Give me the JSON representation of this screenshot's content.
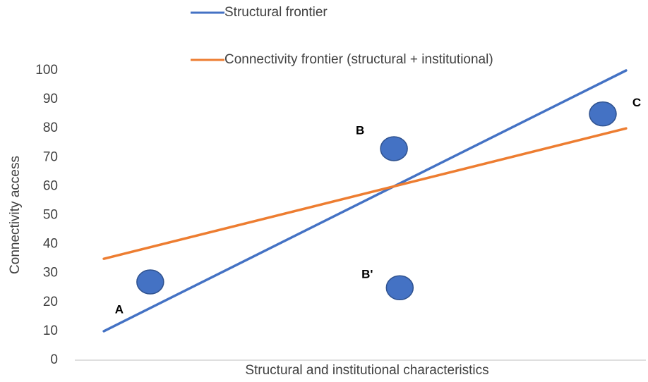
{
  "chart_data": {
    "type": "line",
    "x_label": "Structural and institutional characteristics",
    "y_label": "Connectivity access",
    "xlim": [
      0,
      10
    ],
    "ylim": [
      0,
      100
    ],
    "yticks": [
      0,
      10,
      20,
      30,
      40,
      50,
      60,
      70,
      80,
      90,
      100
    ],
    "grid": false,
    "legend": "top",
    "series": [
      {
        "name": "Structural frontier",
        "color": "#4472c4",
        "x": [
          0.5,
          9.5
        ],
        "values": [
          10,
          100
        ]
      },
      {
        "name": "Connectivity frontier (structural + institutional)",
        "color": "#ed7d31",
        "x": [
          0.5,
          9.5
        ],
        "values": [
          35,
          80
        ]
      }
    ],
    "points": {
      "color": "#4472c4",
      "labels": [
        "A",
        "B",
        "B'",
        "C"
      ],
      "x": [
        1.3,
        5.5,
        5.6,
        9.1
      ],
      "values": [
        27,
        73,
        25,
        85
      ]
    }
  }
}
